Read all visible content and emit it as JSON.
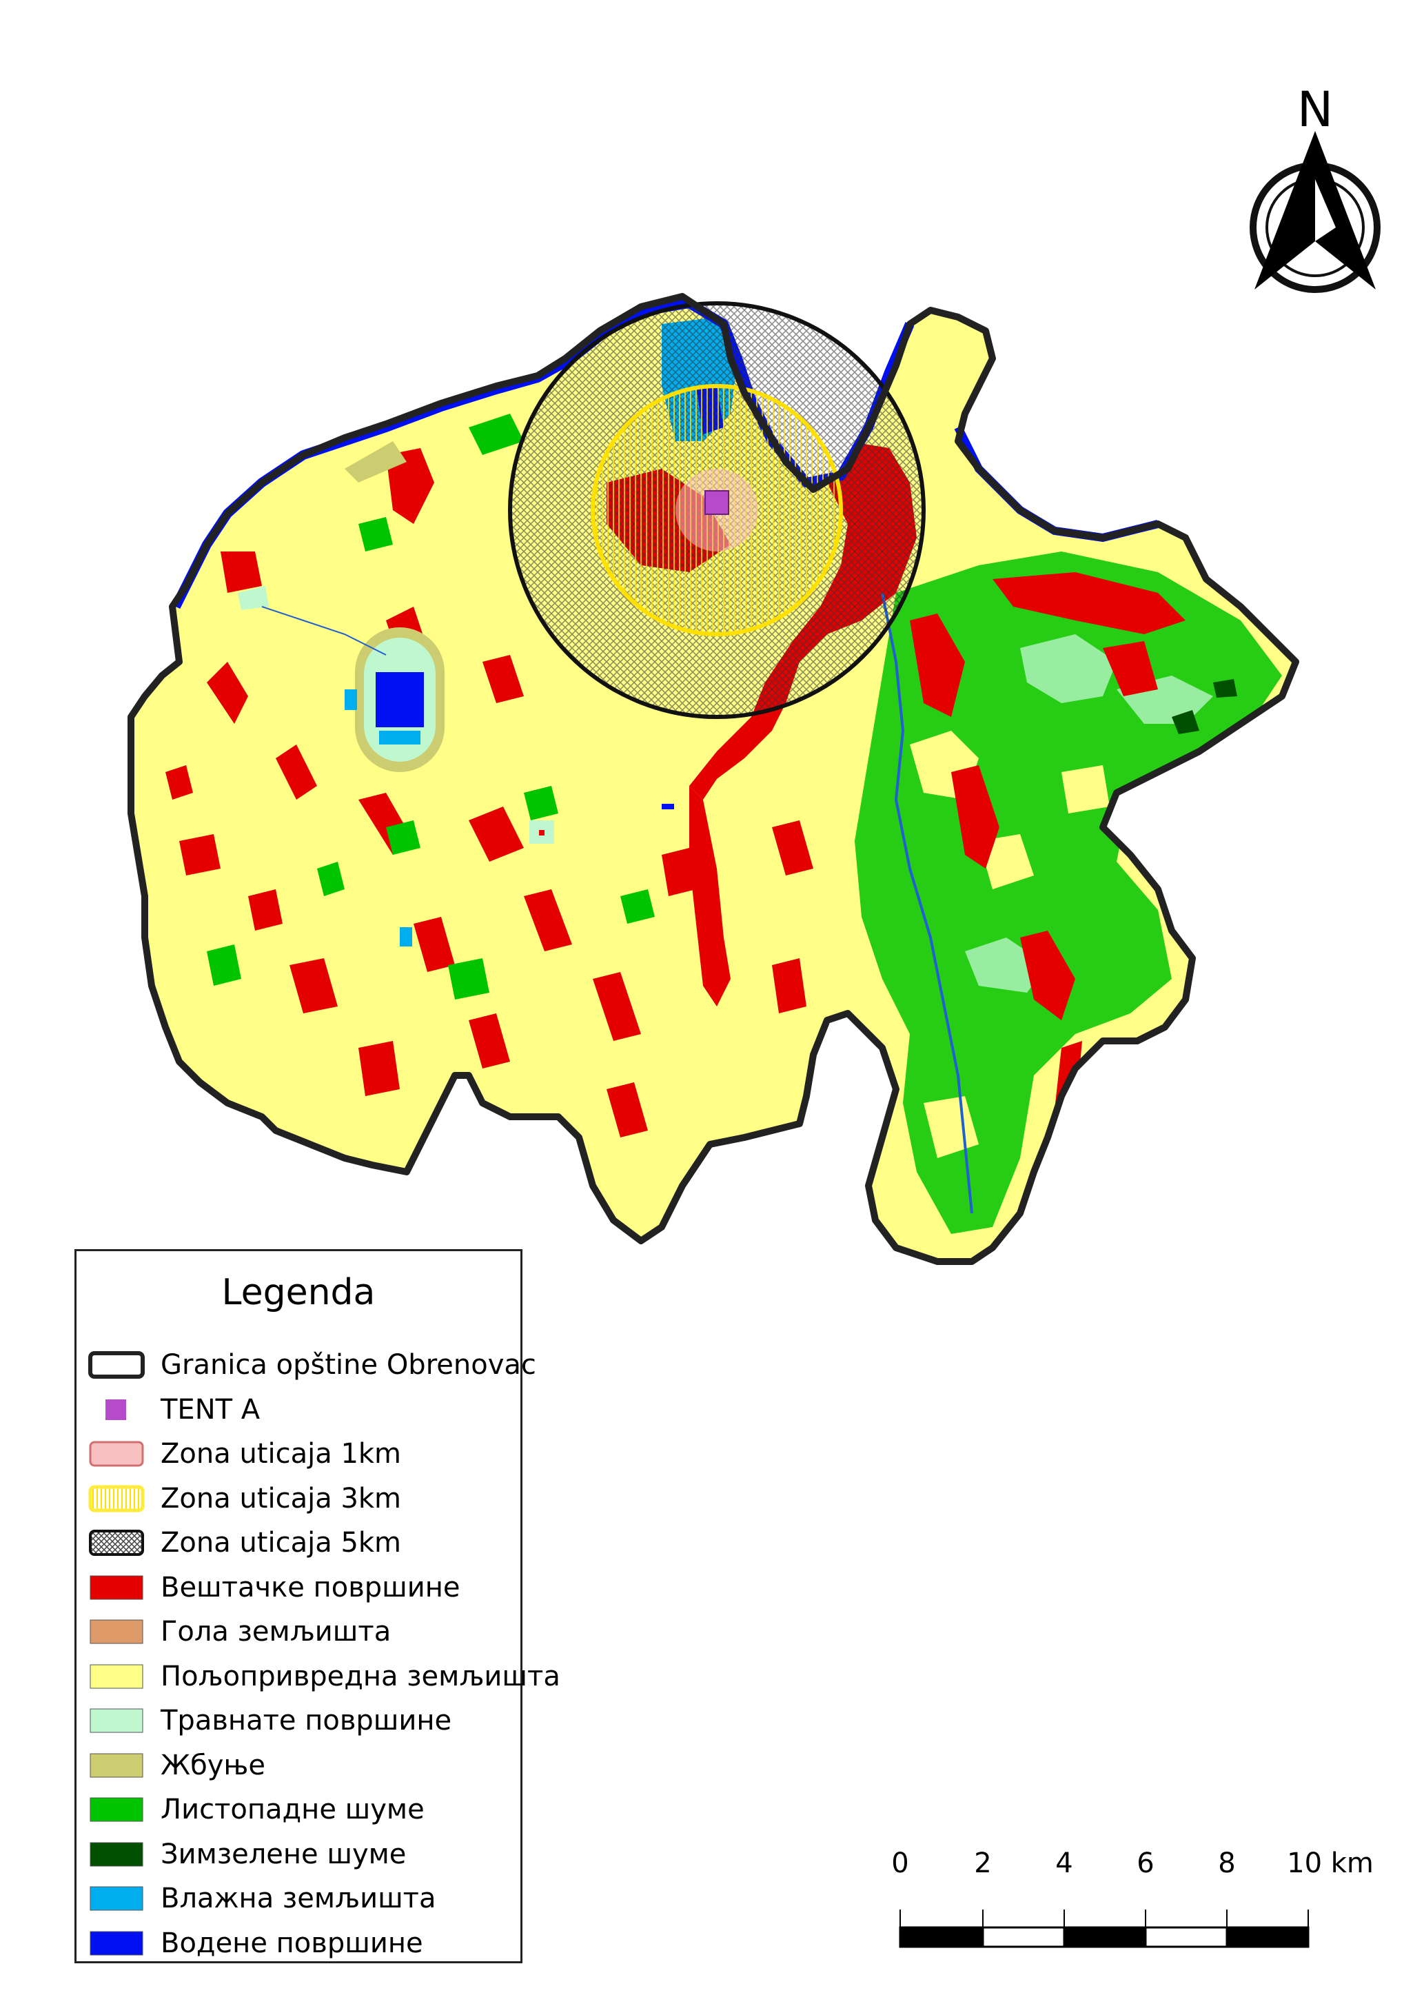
{
  "north_arrow": {
    "letter": "N"
  },
  "legend": {
    "title": "Legenda",
    "items": [
      {
        "label": "Granica opštine Obrenovac",
        "kind": "boundary",
        "color": "#ffffff"
      },
      {
        "label": "TENT A",
        "kind": "point",
        "color": "#b54bc9"
      },
      {
        "label": "Zona uticaja 1km",
        "kind": "zone",
        "color": "#f8c0c0"
      },
      {
        "label": "Zona uticaja 3km",
        "kind": "zone-lines",
        "color": "#ffeb3b"
      },
      {
        "label": "Zona uticaja 5km",
        "kind": "zone-hatch",
        "color": "#555555"
      },
      {
        "label": "Вештачке површине",
        "kind": "fill",
        "color": "#e50000"
      },
      {
        "label": "Гола земљишта",
        "kind": "fill",
        "color": "#df9a6a"
      },
      {
        "label": "Пољопривредна земљишта",
        "kind": "fill",
        "color": "#ffff88"
      },
      {
        "label": "Травнате површине",
        "kind": "fill",
        "color": "#bff7cf"
      },
      {
        "label": "Жбуње",
        "kind": "fill",
        "color": "#cccc70"
      },
      {
        "label": "Листопадне шуме",
        "kind": "fill",
        "color": "#00c400"
      },
      {
        "label": "Зимзелене шуме",
        "kind": "fill",
        "color": "#005000"
      },
      {
        "label": "Влажна земљишта",
        "kind": "fill",
        "color": "#00aef0"
      },
      {
        "label": "Водене површине",
        "kind": "fill",
        "color": "#0010f0"
      }
    ]
  },
  "scale_bar": {
    "labels": [
      "0",
      "2",
      "4",
      "6",
      "8",
      "10 km"
    ]
  }
}
